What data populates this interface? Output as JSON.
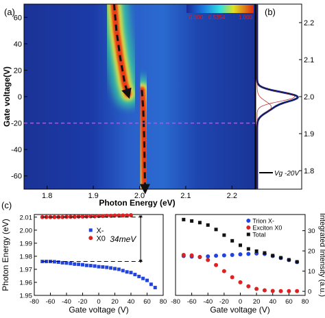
{
  "panels": {
    "a": "(a)",
    "b": "(b)",
    "c": "(c)"
  },
  "colors": {
    "map_background": "#1a3aa8",
    "dash_line": "#e040e0",
    "arrow": "#111111",
    "x_minus": "#2244dd",
    "x_zero": "#dd2222",
    "trion": "#2244dd",
    "exciton": "#dd2222",
    "total": "#111111",
    "cbar_label": "#e02020"
  },
  "chart_data": [
    {
      "id": "a",
      "type": "heatmap",
      "xlabel": "Photon Energy (eV)",
      "ylabel": "Gate voltage(V)",
      "xlim": [
        1.75,
        2.25
      ],
      "ylim": [
        -70,
        70
      ],
      "xticks": [
        1.8,
        1.9,
        2.0,
        2.1,
        2.2
      ],
      "yticks": [
        -60,
        -40,
        -20,
        0,
        20,
        40,
        60
      ],
      "colorbar_labels": [
        "0.000",
        "0.5354",
        "1.000"
      ],
      "ridges": [
        {
          "name": "upper",
          "points": [
            [
              1.945,
              70
            ],
            [
              1.95,
              50
            ],
            [
              1.958,
              30
            ],
            [
              1.968,
              10
            ],
            [
              1.975,
              2
            ]
          ]
        },
        {
          "name": "lower",
          "points": [
            [
              2.005,
              5
            ],
            [
              2.008,
              -10
            ],
            [
              2.01,
              -30
            ],
            [
              2.011,
              -50
            ],
            [
              2.012,
              -70
            ]
          ]
        }
      ],
      "dashed_line_gate_voltage": -20
    },
    {
      "id": "b",
      "type": "line",
      "legend": "Vg -20V",
      "ylim": [
        1.75,
        2.25
      ],
      "yticks": [
        1.8,
        1.9,
        2.0,
        2.1,
        2.2
      ],
      "peaks": [
        {
          "center": 2.0,
          "width": 0.018,
          "height": 0.93
        },
        {
          "center": 1.972,
          "width": 0.022,
          "height": 0.35
        }
      ]
    },
    {
      "id": "c-left",
      "type": "scatter",
      "xlabel": "Gate voltage (V)",
      "ylabel": "Photon Energy (eV)",
      "xlim": [
        -80,
        80
      ],
      "ylim": [
        1.95,
        2.012
      ],
      "xticks": [
        -80,
        -60,
        -40,
        -20,
        0,
        20,
        40,
        60,
        80
      ],
      "yticks": [
        1.95,
        1.96,
        1.97,
        1.98,
        1.99,
        2.0,
        2.01
      ],
      "annotation": "34meV",
      "series": [
        {
          "name": "X-",
          "x": [
            -70,
            -65,
            -60,
            -55,
            -50,
            -45,
            -40,
            -35,
            -30,
            -25,
            -20,
            -15,
            -10,
            -5,
            0,
            5,
            10,
            15,
            20,
            25,
            30,
            35,
            40,
            45,
            50,
            55,
            60,
            65,
            70
          ],
          "y": [
            1.976,
            1.976,
            1.976,
            1.9758,
            1.9755,
            1.975,
            1.9748,
            1.9745,
            1.974,
            1.9738,
            1.9735,
            1.973,
            1.9728,
            1.9725,
            1.972,
            1.9718,
            1.9715,
            1.971,
            1.9705,
            1.97,
            1.969,
            1.968,
            1.9675,
            1.966,
            1.9645,
            1.963,
            1.9615,
            1.9585,
            1.956
          ]
        },
        {
          "name": "X0",
          "x": [
            -70,
            -65,
            -60,
            -55,
            -50,
            -45,
            -40,
            -35,
            -30,
            -25,
            -20,
            -15,
            -10,
            -5,
            0,
            5,
            10,
            15,
            20,
            25,
            30,
            35,
            40
          ],
          "y": [
            2.01,
            2.01,
            2.01,
            2.01,
            2.01,
            2.01,
            2.0102,
            2.0102,
            2.0102,
            2.0104,
            2.0104,
            2.0105,
            2.0106,
            2.0106,
            2.0108,
            2.0108,
            2.011,
            2.011,
            2.0112,
            2.0112,
            2.0113,
            2.0113,
            2.0115
          ]
        }
      ]
    },
    {
      "id": "c-right",
      "type": "scatter",
      "xlabel": "Gate voltage (V)",
      "ylabel": "Integrated Intensity (a.u.)",
      "xlim": [
        -80,
        80
      ],
      "ylim": [
        -2,
        38
      ],
      "xticks": [
        -80,
        -60,
        -40,
        -20,
        0,
        20,
        40,
        60,
        80
      ],
      "yticks": [
        0,
        10,
        20,
        30
      ],
      "series": [
        {
          "name": "Trion X-",
          "x": [
            -70,
            -60,
            -50,
            -40,
            -30,
            -20,
            -10,
            0,
            10,
            20,
            30,
            40,
            50,
            60,
            70
          ],
          "y": [
            17.5,
            17.2,
            17.0,
            17.3,
            17.6,
            17.8,
            18.0,
            18.3,
            18.5,
            18.7,
            18.5,
            17.5,
            16.5,
            15.5,
            14.5
          ]
        },
        {
          "name": "Exciton X0",
          "x": [
            -70,
            -60,
            -50,
            -40,
            -30,
            -20,
            -10,
            0,
            10,
            20,
            30,
            40,
            50,
            60,
            70
          ],
          "y": [
            18.0,
            17.8,
            17.0,
            15.5,
            13.0,
            10.0,
            7.0,
            4.5,
            2.5,
            1.2,
            0.5,
            0.2,
            0.1,
            0.1,
            0.1
          ]
        },
        {
          "name": "Total",
          "x": [
            -70,
            -60,
            -50,
            -40,
            -30,
            -20,
            -10,
            0,
            10,
            20,
            30,
            40,
            50,
            60,
            70
          ],
          "y": [
            35.5,
            34.8,
            34.0,
            32.8,
            30.6,
            27.8,
            25.0,
            22.8,
            21.0,
            19.9,
            19.0,
            17.7,
            16.6,
            15.6,
            14.6
          ]
        }
      ]
    }
  ]
}
